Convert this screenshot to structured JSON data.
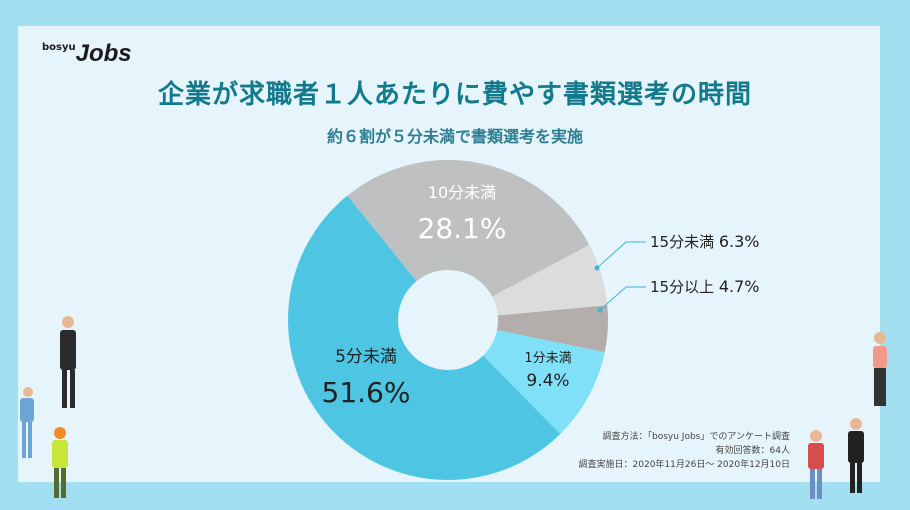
{
  "logo": {
    "small": "bosyu",
    "big": "Jobs"
  },
  "chart_data": {
    "type": "pie",
    "donut": true,
    "title": "企業が求職者１人あたりに費やす書類選考の時間",
    "subtitle": "約６割が５分未満で書類選考を実施",
    "slices": [
      {
        "label": "10分未満",
        "value": 28.1,
        "display": "28.1%",
        "color": "#bfc0c2"
      },
      {
        "label": "15分未満",
        "value": 6.3,
        "display": "6.3%",
        "color": "#dcdcdc"
      },
      {
        "label": "15分以上",
        "value": 4.7,
        "display": "4.7%",
        "color": "#b3adab"
      },
      {
        "label": "1分未満",
        "value": 9.4,
        "display": "9.4%",
        "color": "#7fe0f7"
      },
      {
        "label": "5分未満",
        "value": 51.6,
        "display": "51.6%",
        "color": "#4ec5e3"
      }
    ]
  },
  "notes": {
    "method": "調査方法：「bosyu Jobs」でのアンケート調査",
    "responses": "有効回答数：64人",
    "date": "調査実施日：2020年11月26日～ 2020年12月10日"
  }
}
